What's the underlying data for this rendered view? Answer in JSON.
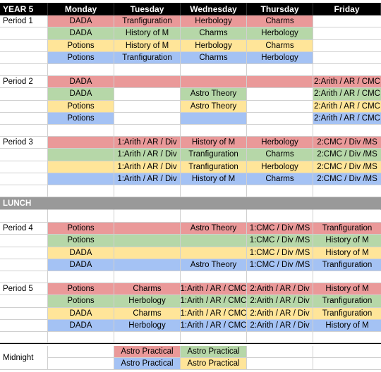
{
  "header": [
    "YEAR 5",
    "Monday",
    "Tuesday",
    "Wednesday",
    "Thursday",
    "Friday"
  ],
  "colors": {
    "red": "#ea9999",
    "green": "#b6d7a8",
    "yellow": "#ffe599",
    "blue": "#a4c2f4",
    "lunch": "#999999",
    "header": "#000000"
  },
  "period1": [
    [
      "Period 1",
      "DADA",
      "Tranfiguration",
      "Herbology",
      "Charms",
      ""
    ],
    [
      "",
      "DADA",
      "History of M",
      "Charms",
      "Herbology",
      ""
    ],
    [
      "",
      "Potions",
      "History of M",
      "Herbology",
      "Charms",
      ""
    ],
    [
      "",
      "Potions",
      "Tranfiguration",
      "Charms",
      "Herbology",
      ""
    ]
  ],
  "period2": [
    [
      "Period 2",
      "DADA",
      "",
      "",
      "",
      "2:Arith / AR / CMC"
    ],
    [
      "",
      "DADA",
      "",
      "Astro Theory",
      "",
      "2:Arith / AR / CMC"
    ],
    [
      "",
      "Potions",
      "",
      "Astro Theory",
      "",
      "2:Arith / AR / CMC"
    ],
    [
      "",
      "Potions",
      "",
      "",
      "",
      "2:Arith / AR / CMC"
    ]
  ],
  "period3": [
    [
      "Period 3",
      "",
      "1:Arith / AR / Div",
      "History of M",
      "Herbology",
      "2:CMC / Div /MS"
    ],
    [
      "",
      "",
      "1:Arith / AR / Div",
      "Tranfiguration",
      "Charms",
      "2:CMC / Div /MS"
    ],
    [
      "",
      "",
      "1:Arith / AR / Div",
      "Tranfiguration",
      "Herbology",
      "2:CMC / Div /MS"
    ],
    [
      "",
      "",
      "1:Arith / AR / Div",
      "History of M",
      "Charms",
      "2:CMC / Div /MS"
    ]
  ],
  "lunch": "LUNCH",
  "period4": [
    [
      "Period 4",
      "Potions",
      "",
      "Astro Theory",
      "1:CMC / Div /MS",
      "Tranfiguration"
    ],
    [
      "",
      "Potions",
      "",
      "",
      "1:CMC / Div /MS",
      "History of M"
    ],
    [
      "",
      "DADA",
      "",
      "",
      "1:CMC / Div /MS",
      "History of M"
    ],
    [
      "",
      "DADA",
      "",
      "Astro Theory",
      "1:CMC / Div /MS",
      "Tranfiguration"
    ]
  ],
  "period5": [
    [
      "Period 5",
      "Potions",
      "Charms",
      "1:Arith / AR / CMC",
      "2:Arith / AR / Div",
      "History of M"
    ],
    [
      "",
      "Potions",
      "Herbology",
      "1:Arith / AR / CMC",
      "2:Arith / AR / Div",
      "Tranfiguration"
    ],
    [
      "",
      "DADA",
      "Charms",
      "1:Arith / AR / CMC",
      "2:Arith / AR / Div",
      "Tranfiguration"
    ],
    [
      "",
      "DADA",
      "Herbology",
      "1:Arith / AR / CMC",
      "2:Arith / AR / Div",
      "History of M"
    ]
  ],
  "midnight": {
    "label": "Midnight",
    "rows": [
      [
        "",
        "",
        "Astro Practical",
        "Astro Practical",
        "",
        ""
      ],
      [
        "",
        "",
        "Astro Practical",
        "Astro Practical",
        "",
        ""
      ]
    ]
  }
}
